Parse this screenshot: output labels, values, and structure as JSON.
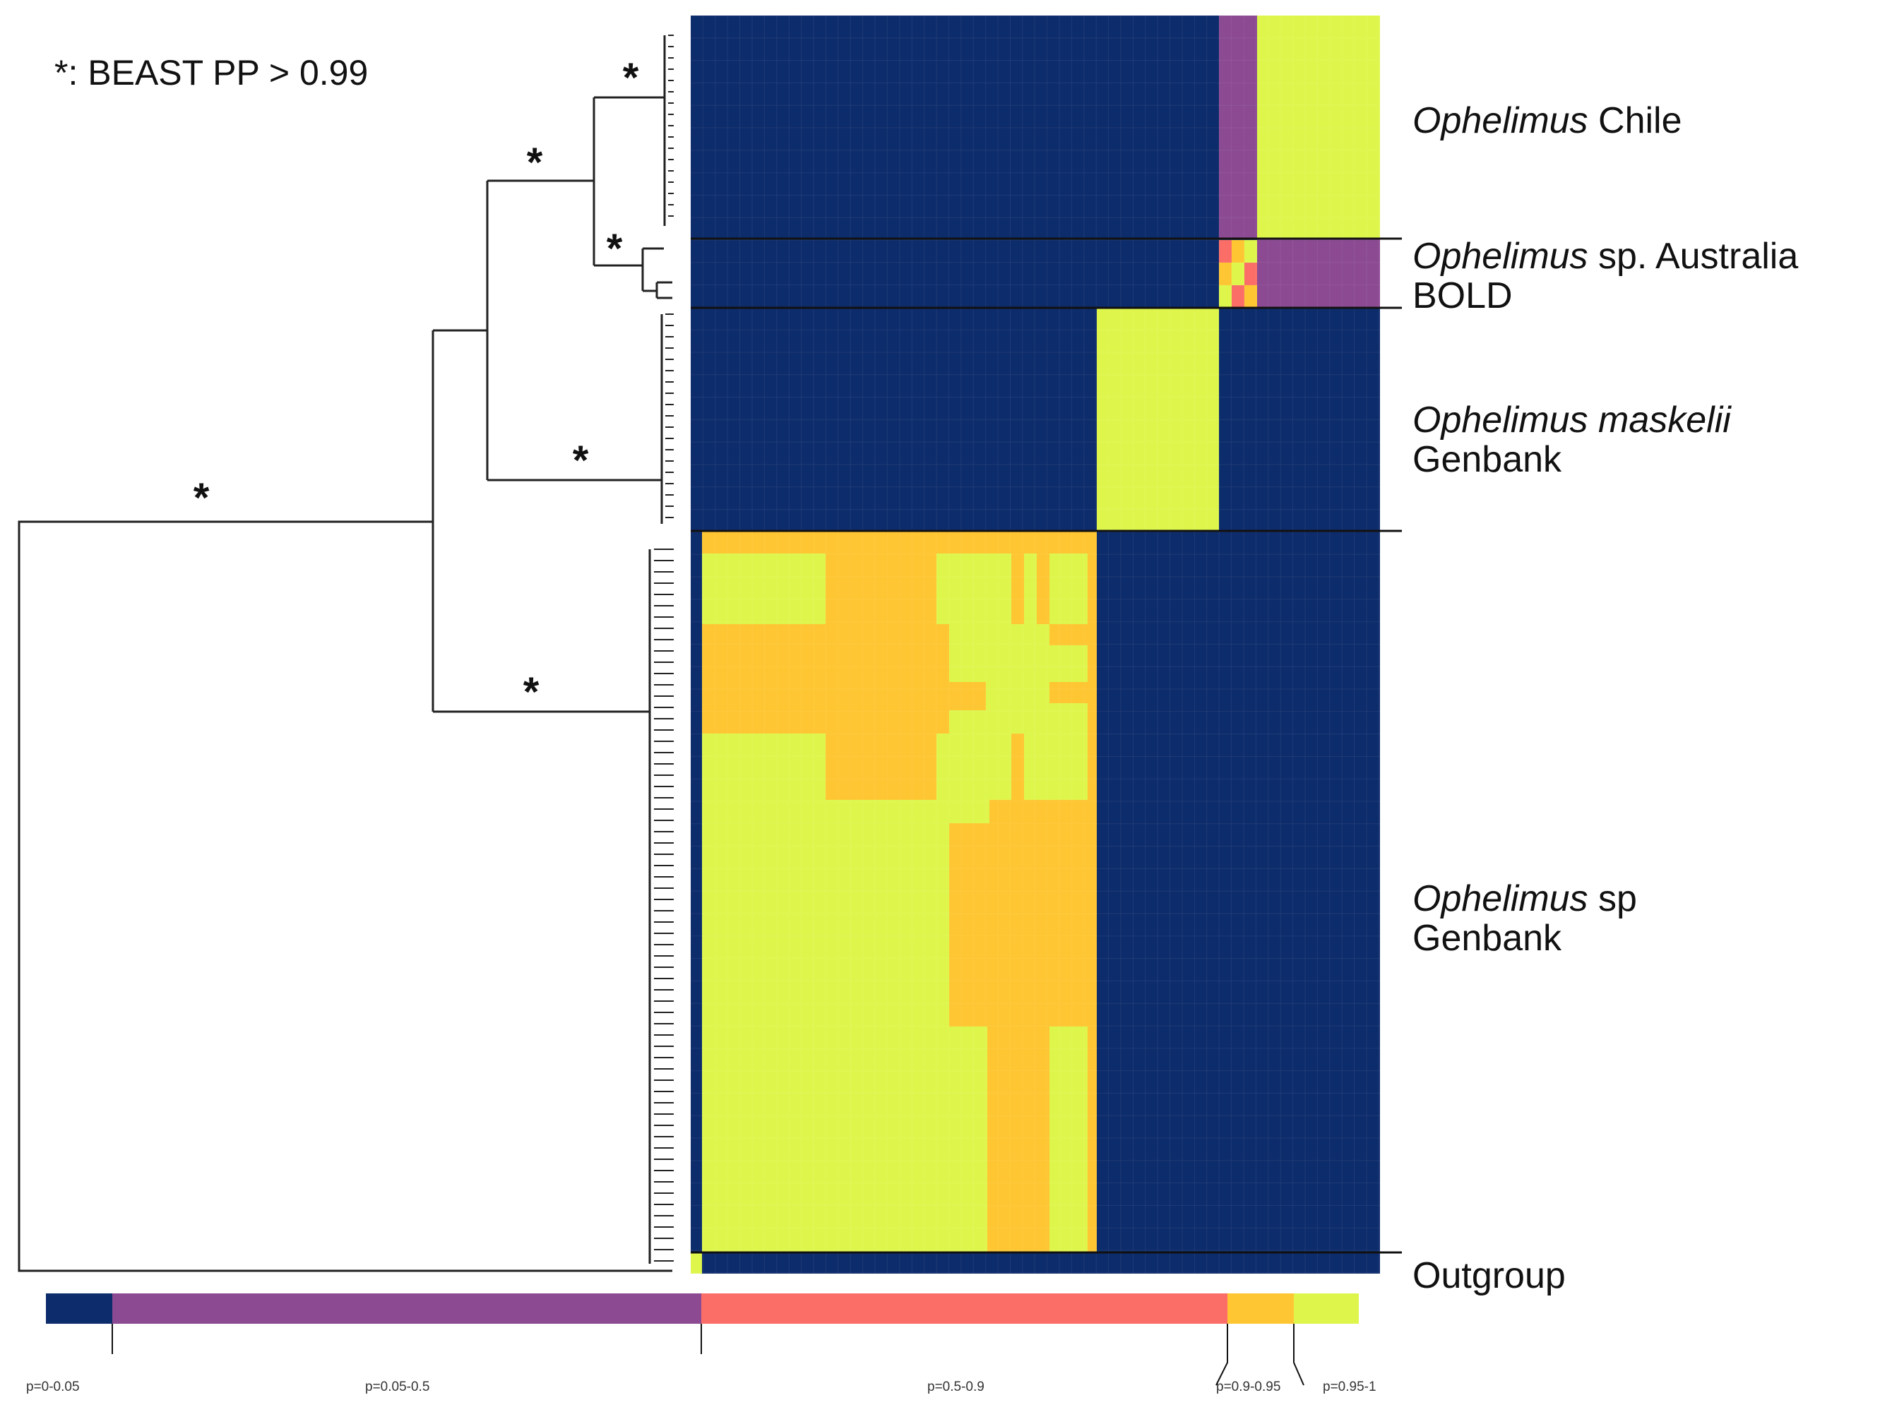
{
  "legend_note": "*: BEAST PP > 0.99",
  "support_marker": "*",
  "colors": {
    "navy": "#0d2c6b",
    "purple": "#8b4a92",
    "salmon": "#fb6e67",
    "orange": "#fec632",
    "yellow": "#def64c"
  },
  "clades": [
    {
      "id": "chile",
      "italic": "Ophelimus",
      "rest": " Chile",
      "line2": ""
    },
    {
      "id": "australia",
      "italic": "Ophelimus",
      "rest": " sp. Australia",
      "line2": "BOLD"
    },
    {
      "id": "maskelii",
      "italic": "Ophelimus maskelii",
      "rest": "",
      "line2": "Genbank"
    },
    {
      "id": "sp",
      "italic": "Ophelimus",
      "rest": " sp",
      "line2": "Genbank"
    },
    {
      "id": "outgroup",
      "italic": "",
      "rest": "Outgroup",
      "line2": ""
    }
  ],
  "colorbar": [
    {
      "label": "p=0-0.05",
      "color": "#0d2c6b"
    },
    {
      "label": "p=0.05-0.5",
      "color": "#8b4a92"
    },
    {
      "label": "p=0.5-0.9",
      "color": "#fb6e67"
    },
    {
      "label": "p=0.9-0.95",
      "color": "#fec632"
    },
    {
      "label": "p=0.95-1",
      "color": "#def64c"
    }
  ]
}
